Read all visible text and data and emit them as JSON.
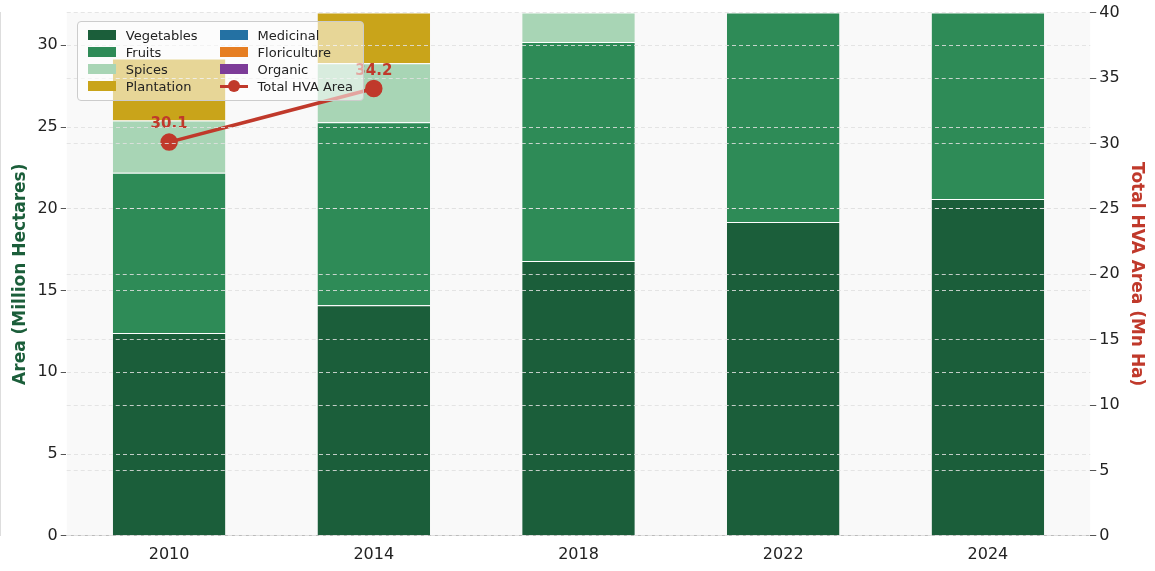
{
  "chart_data": {
    "type": "bar",
    "stacked": true,
    "ylabel": "Area (Million Hectares)",
    "y2label": "Total HVA Area (Mn Ha)",
    "categories": [
      "2010",
      "2014",
      "2018",
      "2022",
      "2024"
    ],
    "series": [
      {
        "name": "Vegetables",
        "color": "#1b5e3a",
        "values": [
          12.4,
          14.1,
          16.8,
          19.2,
          20.6
        ]
      },
      {
        "name": "Fruits",
        "color": "#2e8b57",
        "values": [
          9.8,
          11.2,
          13.4,
          12.8,
          11.4
        ]
      },
      {
        "name": "Spices",
        "color": "#a8d5b5",
        "values": [
          3.2,
          3.6,
          1.8,
          null,
          null
        ]
      },
      {
        "name": "Plantation",
        "color": "#c9a41a",
        "values": [
          3.8,
          3.1,
          null,
          null,
          null
        ]
      },
      {
        "name": "Medicinal",
        "color": "#2471a3",
        "values": [
          null,
          null,
          null,
          null,
          null
        ]
      },
      {
        "name": "Floriculture",
        "color": "#e67e22",
        "values": [
          null,
          null,
          null,
          null,
          null
        ]
      },
      {
        "name": "Organic",
        "color": "#7d3c98",
        "values": [
          null,
          null,
          null,
          null,
          null
        ]
      },
      {
        "name": "Total HVA Area",
        "type": "line",
        "axis": "y2",
        "color": "#c0392b",
        "marker": "circle",
        "values": [
          30.1,
          34.2,
          null,
          null,
          null
        ],
        "value_labels": [
          "30.1",
          "34.2",
          null,
          null,
          null
        ]
      }
    ],
    "ylim": [
      0,
      32
    ],
    "yticks": [
      0,
      5,
      10,
      15,
      20,
      25,
      30
    ],
    "y2lim": [
      0,
      40
    ],
    "y2ticks": [
      0,
      5,
      10,
      15,
      20,
      25,
      30,
      35,
      40
    ],
    "grid": "y",
    "legend": "top left"
  }
}
